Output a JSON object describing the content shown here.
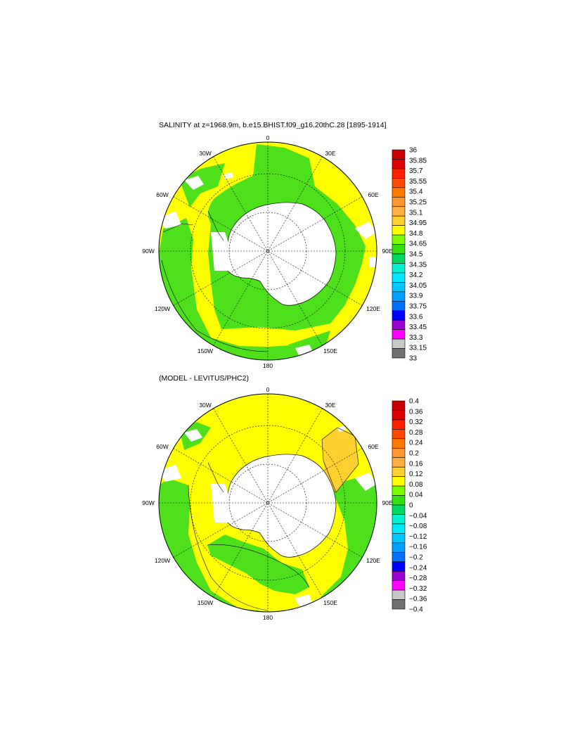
{
  "panels": [
    {
      "title": "SALINITY at z=1968.9m, b.e15.BHIST.f09_g16.20thC.28 [1895-1914]",
      "colorbar_labels": [
        "36",
        "35.85",
        "35.7",
        "35.55",
        "35.4",
        "35.25",
        "35.1",
        "34.95",
        "34.8",
        "34.65",
        "34.5",
        "34.35",
        "34.2",
        "34.05",
        "33.9",
        "33.75",
        "33.6",
        "33.45",
        "33.3",
        "33.15",
        "33"
      ]
    },
    {
      "title": "(MODEL - LEVITUS/PHC2)",
      "colorbar_labels": [
        "0.4",
        "0.36",
        "0.32",
        "0.28",
        "0.24",
        "0.2",
        "0.16",
        "0.12",
        "0.08",
        "0.04",
        "0",
        "−0.04",
        "−0.08",
        "−0.12",
        "−0.16",
        "−0.2",
        "−0.24",
        "−0.28",
        "−0.32",
        "−0.36",
        "−0.4"
      ]
    }
  ],
  "longitude_labels": [
    "0",
    "30E",
    "60E",
    "90E",
    "120E",
    "150E",
    "180",
    "150W",
    "120W",
    "90W",
    "60W",
    "30W"
  ],
  "colorbar_colors": [
    "#c80000",
    "#e00000",
    "#ff2000",
    "#ff4800",
    "#ff7800",
    "#ff9830",
    "#ffb040",
    "#ffd030",
    "#ffff00",
    "#7cfc00",
    "#33e010",
    "#00d860",
    "#00f0d0",
    "#00e8ff",
    "#00c8ff",
    "#00a0ff",
    "#0070ff",
    "#0000ff",
    "#9a00d0",
    "#ff00ff",
    "#c8c8c8",
    "#707070"
  ]
}
